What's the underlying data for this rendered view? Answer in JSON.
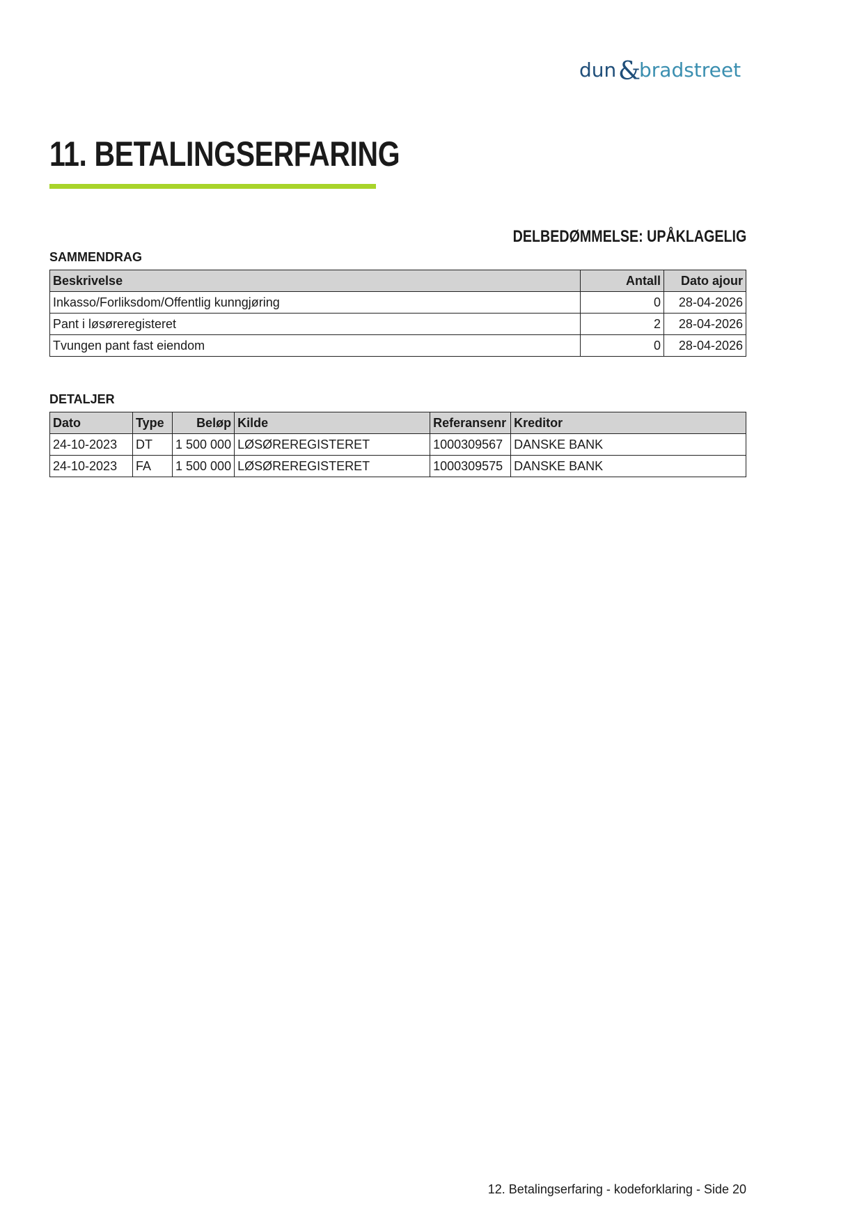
{
  "logo": {
    "text": "dun & bradstreet",
    "colors": {
      "dun": "#1f4e79",
      "amp": "#1f4e79",
      "bradstreet": "#3b8fb0"
    }
  },
  "title": "11. BETALINGSERFARING",
  "accent_color": "#a8d42a",
  "rating": "DELBEDØMMELSE: UPÅKLAGELIG",
  "summary": {
    "label": "SAMMENDRAG",
    "headers": [
      "Beskrivelse",
      "Antall",
      "Dato ajour"
    ],
    "rows": [
      [
        "Inkasso/Forliksdom/Offentlig kunngjøring",
        "0",
        "28-04-2026"
      ],
      [
        "Pant i løsøreregisteret",
        "2",
        "28-04-2026"
      ],
      [
        "Tvungen pant fast eiendom",
        "0",
        "28-04-2026"
      ]
    ]
  },
  "details": {
    "label": "DETALJER",
    "headers": [
      "Dato",
      "Type",
      "Beløp",
      "Kilde",
      "Referansenr",
      "Kreditor"
    ],
    "rows": [
      [
        "24-10-2023",
        "DT",
        "1 500 000",
        "LØSØREREGISTERET",
        "1000309567",
        "DANSKE BANK"
      ],
      [
        "24-10-2023",
        "FA",
        "1 500 000",
        "LØSØREREGISTERET",
        "1000309575",
        "DANSKE BANK"
      ]
    ]
  },
  "footer": "12. Betalingserfaring - kodeforklaring - Side 20"
}
